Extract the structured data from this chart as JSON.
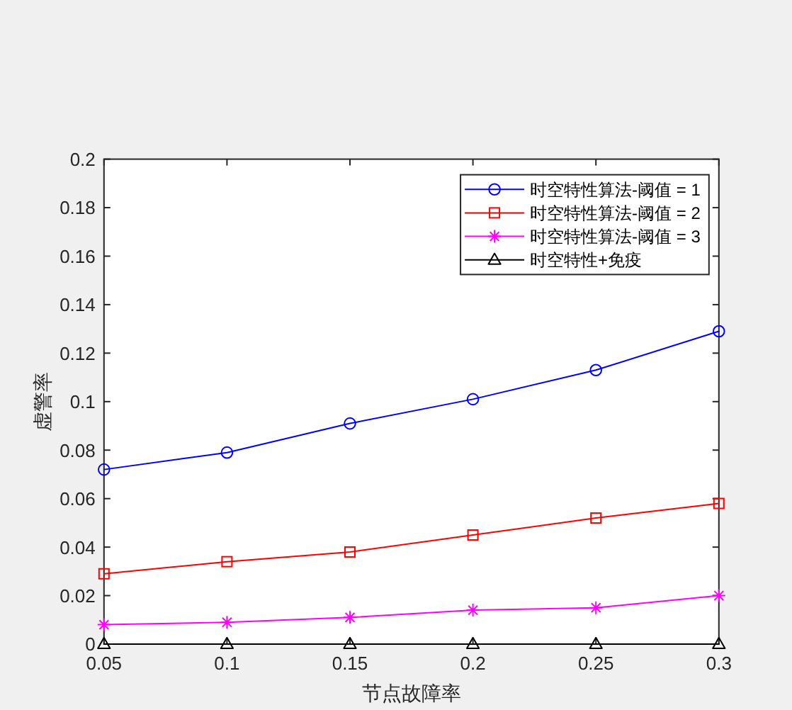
{
  "chart_data": {
    "type": "line",
    "xlabel": "节点故障率",
    "ylabel": "虚警率",
    "x": [
      0.05,
      0.1,
      0.15,
      0.2,
      0.25,
      0.3
    ],
    "series": [
      {
        "name": "时空特性算法-阈值 = 1",
        "color": "#0000ff",
        "marker": "circle",
        "values": [
          0.072,
          0.079,
          0.091,
          0.101,
          0.113,
          0.129
        ]
      },
      {
        "name": "时空特性算法-阈值 = 2",
        "color": "#ff0000",
        "marker": "square",
        "values": [
          0.029,
          0.034,
          0.038,
          0.045,
          0.052,
          0.058
        ]
      },
      {
        "name": "时空特性算法-阈值 = 3",
        "color": "#ff00ff",
        "marker": "cross",
        "values": [
          0.008,
          0.009,
          0.011,
          0.014,
          0.015,
          0.02
        ]
      },
      {
        "name": "时空特性+免疫",
        "color": "#000000",
        "marker": "triangle",
        "values": [
          0,
          0,
          0,
          0,
          0,
          0
        ]
      }
    ],
    "xlim": [
      0.05,
      0.3
    ],
    "ylim": [
      0,
      0.2
    ],
    "xticks": [
      0.05,
      0.1,
      0.15,
      0.2,
      0.25,
      0.3
    ],
    "yticks": [
      0,
      0.02,
      0.04,
      0.06,
      0.08,
      0.1,
      0.12,
      0.14,
      0.16,
      0.18,
      0.2
    ],
    "legend": "top right",
    "line_style": "solid"
  }
}
